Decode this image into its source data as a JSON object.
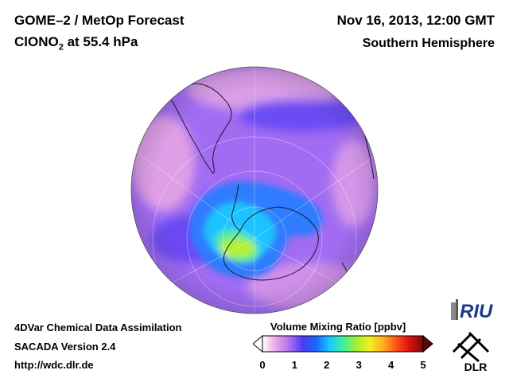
{
  "header": {
    "title_line1": "GOME–2 / MetOp Forecast",
    "species_prefix": "ClONO",
    "species_sub": "2",
    "species_suffix": " at 55.4 hPa",
    "date": "Nov 16, 2013, 12:00 GMT",
    "region": "Southern Hemisphere"
  },
  "footer": {
    "line1": "4DVar Chemical Data Assimilation",
    "line2": "SACADA Version 2.4",
    "line3": "http://wdc.dlr.de"
  },
  "colorbar": {
    "title": "Volume Mixing Ratio [ppbv]",
    "ticks": [
      "0",
      "1",
      "2",
      "3",
      "4",
      "5"
    ],
    "min": 0,
    "max": 5,
    "colors": [
      "#ffffff",
      "#e6a8e6",
      "#b070f0",
      "#4a3cf4",
      "#1e64ff",
      "#18c8ff",
      "#3cf0a0",
      "#a0f030",
      "#f0f020",
      "#ffb020",
      "#ff5018",
      "#d81010",
      "#7a0a0a"
    ]
  },
  "map": {
    "projection": "orthographic, South Pole centered",
    "background_value_color": "#a770f0",
    "low_color": "#e6a8e6",
    "vortex_color": "#2e8cff",
    "core_color": "#b0f020"
  },
  "logos": {
    "riu": "RIU",
    "dlr": "DLR"
  }
}
